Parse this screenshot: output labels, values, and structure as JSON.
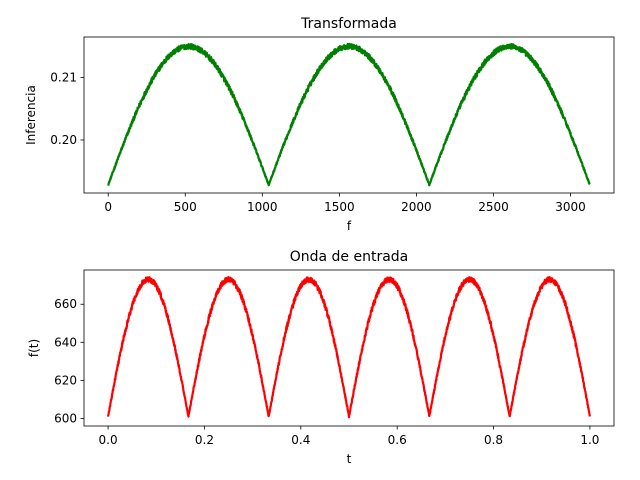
{
  "chart_data": [
    {
      "type": "line",
      "title": "Transformada",
      "xlabel": "f",
      "ylabel": "Inferencia",
      "xlim": [
        -157,
        3282
      ],
      "ylim": [
        0.1915,
        0.2165
      ],
      "xticks": [
        0,
        500,
        1000,
        1500,
        2000,
        2500,
        3000
      ],
      "xtick_labels": [
        "0",
        "500",
        "1000",
        "1500",
        "2000",
        "2500",
        "3000"
      ],
      "yticks": [
        0.2,
        0.21
      ],
      "ytick_labels": [
        "0.20",
        "0.21"
      ],
      "grid": false,
      "series": [
        {
          "color": "#008000",
          "x_start": 0,
          "x_end": 3125,
          "arch_period": 1041.7,
          "y_min": 0.1928,
          "y_max": 0.215,
          "noise_amplitude": 0.0004
        }
      ]
    },
    {
      "type": "line",
      "title": "Onda de entrada",
      "xlabel": "t",
      "ylabel": "f(t)",
      "xlim": [
        -0.05,
        1.05
      ],
      "ylim": [
        596,
        678
      ],
      "xticks": [
        0.0,
        0.2,
        0.4,
        0.6,
        0.8,
        1.0
      ],
      "xtick_labels": [
        "0.0",
        "0.2",
        "0.4",
        "0.6",
        "0.8",
        "1.0"
      ],
      "yticks": [
        600,
        620,
        640,
        660
      ],
      "ytick_labels": [
        "600",
        "620",
        "640",
        "660"
      ],
      "grid": false,
      "series": [
        {
          "color": "#ff0000",
          "x_start": 0.0,
          "x_end": 1.0,
          "arch_period": 0.16667,
          "y_min": 601,
          "y_max": 673,
          "noise_amplitude": 1.3
        }
      ]
    }
  ]
}
